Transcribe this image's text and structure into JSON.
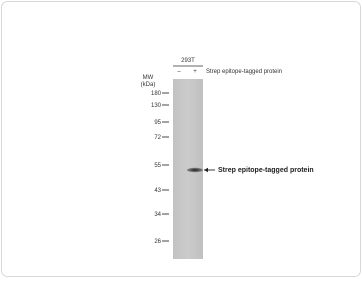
{
  "blot": {
    "cell_line": "293T",
    "lanes": [
      "–",
      "+"
    ],
    "lane_condition": "Strep epitope-tagged protein",
    "mw_label": "MW",
    "mw_unit": "(kDa)",
    "markers": [
      180,
      130,
      95,
      72,
      55,
      43,
      34,
      26
    ],
    "band_label": "Strep epitope-tagged protein"
  }
}
